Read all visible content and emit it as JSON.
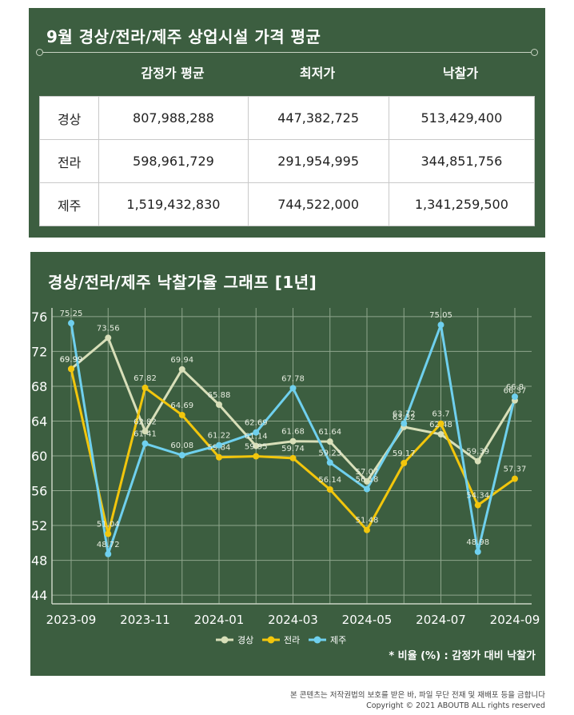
{
  "table": {
    "title": "9월 경상/전라/제주 상업시설 가격 평균",
    "headers": [
      "감정가 평균",
      "최저가",
      "낙찰가"
    ],
    "rows": [
      {
        "region": "경상",
        "values": [
          "807,988,288",
          "447,382,725",
          "513,429,400"
        ]
      },
      {
        "region": "전라",
        "values": [
          "598,961,729",
          "291,954,995",
          "344,851,756"
        ]
      },
      {
        "region": "제주",
        "values": [
          "1,519,432,830",
          "744,522,000",
          "1,341,259,500"
        ]
      }
    ]
  },
  "chart_title": "경상/전라/제주 낙찰가율 그래프 [1년]",
  "note": "* 비율 (%) : 감정가 대비 낙찰가",
  "footer": {
    "line1": "본 콘텐츠는 저작권법의 보호를 받은 바, 파일 무단 전재 및 재배포 등을 금합니다",
    "line2": "Copyright © 2021 ABOUTB ALL rights reserved"
  },
  "colors": {
    "panel": "#3c5e40",
    "gyeongsang": "#d8dfb9",
    "jeolla": "#f2c60c",
    "jeju": "#6fd0ee"
  },
  "chart_data": {
    "type": "line",
    "x": [
      "2023-09",
      "2023-10",
      "2023-11",
      "2023-12",
      "2024-01",
      "2024-02",
      "2024-03",
      "2024-04",
      "2024-05",
      "2024-06",
      "2024-07",
      "2024-08",
      "2024-09"
    ],
    "x_tick_labels": [
      "2023-09",
      "2023-11",
      "2024-01",
      "2024-03",
      "2024-05",
      "2024-07",
      "2024-09"
    ],
    "y_ticks": [
      44,
      48,
      52,
      56,
      60,
      64,
      68,
      72,
      76
    ],
    "ylim": [
      43,
      77
    ],
    "grid": true,
    "legend_position": "bottom",
    "series": [
      {
        "name": "경상",
        "color": "#d8dfb9",
        "values": [
          69.99,
          73.56,
          62.82,
          69.94,
          65.88,
          61.14,
          61.68,
          61.64,
          57.07,
          63.32,
          62.48,
          59.39,
          66.37
        ]
      },
      {
        "name": "전라",
        "color": "#f2c60c",
        "values": [
          69.99,
          51.04,
          67.82,
          64.69,
          59.84,
          59.95,
          59.74,
          56.14,
          51.48,
          59.17,
          63.7,
          54.34,
          57.37
        ]
      },
      {
        "name": "제주",
        "color": "#6fd0ee",
        "values": [
          75.25,
          48.72,
          61.41,
          60.08,
          61.22,
          62.69,
          67.78,
          59.23,
          56.18,
          63.72,
          75.05,
          48.98,
          66.8
        ]
      }
    ]
  }
}
